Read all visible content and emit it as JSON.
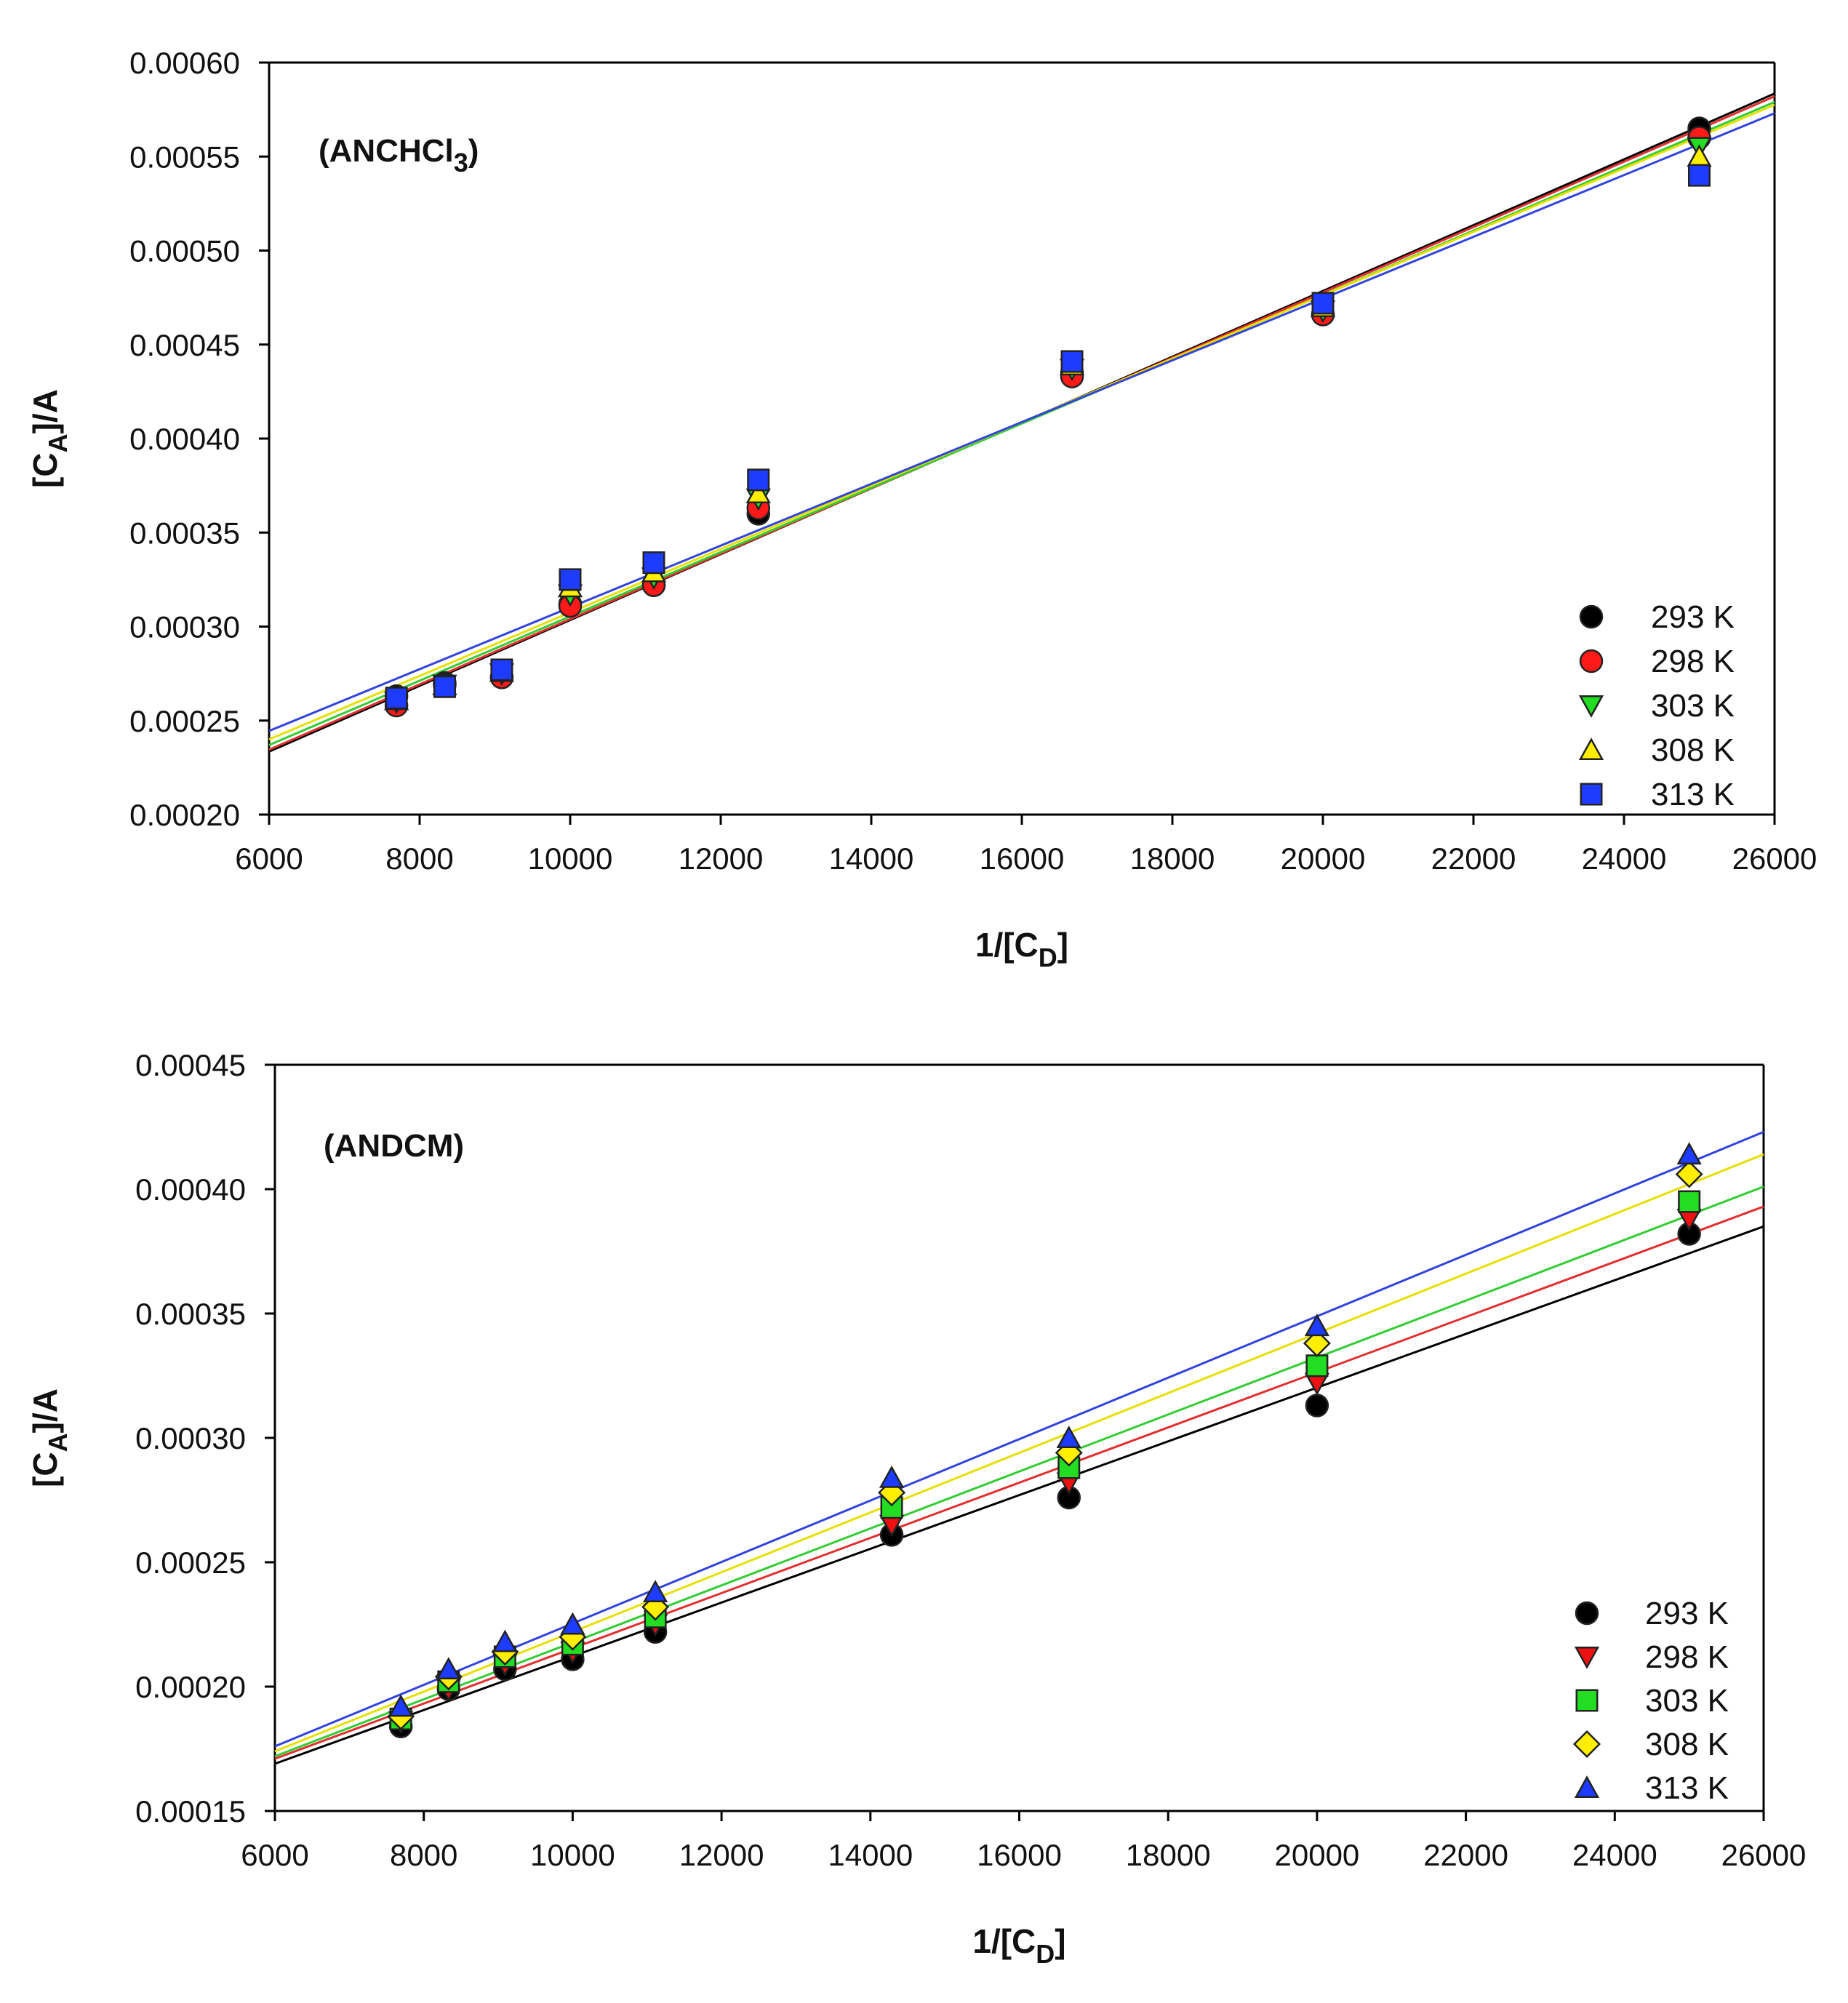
{
  "chart_data": [
    {
      "type": "scatter",
      "title": "(ANCHCl₃)",
      "title_main": "(ANCHCl",
      "title_sub": "3",
      "title_close": ")",
      "xlabel_main": "1/[C",
      "xlabel_sub": "D",
      "xlabel_close": "]",
      "ylabel_main": "[C",
      "ylabel_sub": "A",
      "ylabel_close": "]/A",
      "xlim": [
        6000,
        26000
      ],
      "ylim": [
        0.0002,
        0.0006
      ],
      "xticks": [
        6000,
        8000,
        10000,
        12000,
        14000,
        16000,
        18000,
        20000,
        22000,
        24000,
        26000
      ],
      "xtick_labels": [
        "6000",
        "8000",
        "10000",
        "12000",
        "14000",
        "16000",
        "18000",
        "20000",
        "22000",
        "24000",
        "26000"
      ],
      "yticks": [
        0.0002,
        0.00025,
        0.0003,
        0.00035,
        0.0004,
        0.00045,
        0.0005,
        0.00055,
        0.0006
      ],
      "ytick_labels": [
        "0.00020",
        "0.00025",
        "0.00030",
        "0.00035",
        "0.00040",
        "0.00045",
        "0.00050",
        "0.00055",
        "0.00060"
      ],
      "legend_position": "bottom-right",
      "series": [
        {
          "name": "293 K",
          "marker": "circle",
          "color": "#000000",
          "line_color": "#000000",
          "x": [
            7692,
            8333,
            9091,
            10000,
            11111,
            12500,
            16667,
            20000,
            25000
          ],
          "y": [
            0.000263,
            0.00027,
            0.000273,
            0.000312,
            0.000322,
            0.00036,
            0.000435,
            0.000466,
            0.000565
          ],
          "fit": {
            "x": [
              6000,
              26000
            ],
            "y": [
              0.0002335,
              0.0005835
            ]
          }
        },
        {
          "name": "298 K",
          "marker": "circle",
          "color": "#ff1a1a",
          "line_color": "#e03030",
          "x": [
            7692,
            8333,
            9091,
            10000,
            11111,
            12500,
            16667,
            20000,
            25000
          ],
          "y": [
            0.000258,
            0.000269,
            0.000273,
            0.000311,
            0.000322,
            0.000363,
            0.000433,
            0.000466,
            0.00056
          ],
          "fit": {
            "x": [
              6000,
              26000
            ],
            "y": [
              0.0002345,
              0.000582
            ]
          }
        },
        {
          "name": "303 K",
          "marker": "triangle-down",
          "color": "#22dd22",
          "line_color": "#33cc33",
          "x": [
            7692,
            8333,
            9091,
            10000,
            11111,
            12500,
            16667,
            20000,
            25000
          ],
          "y": [
            0.00026,
            0.000269,
            0.000275,
            0.000317,
            0.000326,
            0.000368,
            0.000437,
            0.000468,
            0.000555
          ],
          "fit": {
            "x": [
              6000,
              26000
            ],
            "y": [
              0.000237,
              0.000579
            ]
          }
        },
        {
          "name": "308 K",
          "marker": "triangle-up",
          "color": "#ffee00",
          "line_color": "#e6e000",
          "x": [
            7692,
            8333,
            9091,
            10000,
            11111,
            12500,
            16667,
            20000,
            25000
          ],
          "y": [
            0.000261,
            0.000269,
            0.000276,
            0.000321,
            0.000329,
            0.000371,
            0.000439,
            0.00047,
            0.00055
          ],
          "fit": {
            "x": [
              6000,
              26000
            ],
            "y": [
              0.00024,
              0.0005775
            ]
          }
        },
        {
          "name": "313 K",
          "marker": "square",
          "color": "#1e3cff",
          "line_color": "#3344dd",
          "x": [
            7692,
            8333,
            9091,
            10000,
            11111,
            12500,
            16667,
            20000,
            25000
          ],
          "y": [
            0.000262,
            0.000268,
            0.000277,
            0.000325,
            0.000334,
            0.000378,
            0.000441,
            0.000472,
            0.00054
          ],
          "fit": {
            "x": [
              6000,
              26000
            ],
            "y": [
              0.0002445,
              0.000573
            ]
          }
        }
      ]
    },
    {
      "type": "scatter",
      "title": "(ANDCM)",
      "title_main": "(ANDCM)",
      "title_sub": "",
      "title_close": "",
      "xlabel_main": "1/[C",
      "xlabel_sub": "D",
      "xlabel_close": "]",
      "ylabel_main": "[C",
      "ylabel_sub": "A",
      "ylabel_close": "]/A",
      "xlim": [
        6000,
        26000
      ],
      "ylim": [
        0.00015,
        0.00045
      ],
      "xticks": [
        6000,
        8000,
        10000,
        12000,
        14000,
        16000,
        18000,
        20000,
        22000,
        24000,
        26000
      ],
      "xtick_labels": [
        "6000",
        "8000",
        "10000",
        "12000",
        "14000",
        "16000",
        "18000",
        "20000",
        "22000",
        "24000",
        "26000"
      ],
      "yticks": [
        0.00015,
        0.0002,
        0.00025,
        0.0003,
        0.00035,
        0.0004,
        0.00045
      ],
      "ytick_labels": [
        "0.00015",
        "0.00020",
        "0.00025",
        "0.00030",
        "0.00035",
        "0.00040",
        "0.00045"
      ],
      "legend_position": "bottom-right",
      "series": [
        {
          "name": "293 K",
          "marker": "circle",
          "color": "#000000",
          "line_color": "#000000",
          "x": [
            7692,
            8333,
            9091,
            10000,
            11111,
            14286,
            16667,
            20000,
            25000
          ],
          "y": [
            0.000184,
            0.000199,
            0.000207,
            0.000211,
            0.000222,
            0.000261,
            0.000276,
            0.000313,
            0.000382
          ],
          "fit": {
            "x": [
              6000,
              26000
            ],
            "y": [
              0.000169,
              0.000385
            ]
          }
        },
        {
          "name": "298 K",
          "marker": "triangle-down",
          "color": "#ee1111",
          "line_color": "#e03030",
          "x": [
            7692,
            8333,
            9091,
            10000,
            11111,
            14286,
            16667,
            20000,
            25000
          ],
          "y": [
            0.000186,
            0.000199,
            0.000209,
            0.000214,
            0.000225,
            0.000265,
            0.000282,
            0.000322,
            0.000388
          ],
          "fit": {
            "x": [
              6000,
              26000
            ],
            "y": [
              0.000171,
              0.000393
            ]
          }
        },
        {
          "name": "303 K",
          "marker": "square",
          "color": "#22dd22",
          "line_color": "#33cc33",
          "x": [
            7692,
            8333,
            9091,
            10000,
            11111,
            14286,
            16667,
            20000,
            25000
          ],
          "y": [
            0.000187,
            0.000202,
            0.000212,
            0.000217,
            0.000228,
            0.000272,
            0.000288,
            0.000329,
            0.000395
          ],
          "fit": {
            "x": [
              6000,
              26000
            ],
            "y": [
              0.000172,
              0.000401
            ]
          }
        },
        {
          "name": "308 K",
          "marker": "diamond",
          "color": "#ffee00",
          "line_color": "#e6e000",
          "x": [
            7692,
            8333,
            9091,
            10000,
            11111,
            14286,
            16667,
            20000,
            25000
          ],
          "y": [
            0.000188,
            0.000204,
            0.000214,
            0.00022,
            0.000232,
            0.000278,
            0.000294,
            0.000338,
            0.000406
          ],
          "fit": {
            "x": [
              6000,
              26000
            ],
            "y": [
              0.000174,
              0.000414
            ]
          }
        },
        {
          "name": "313 K",
          "marker": "triangle-up",
          "color": "#1e3cff",
          "line_color": "#3344dd",
          "x": [
            7692,
            8333,
            9091,
            10000,
            11111,
            14286,
            16667,
            20000,
            25000
          ],
          "y": [
            0.000192,
            0.000207,
            0.000218,
            0.000225,
            0.000238,
            0.000284,
            0.0003,
            0.000345,
            0.000414
          ],
          "fit": {
            "x": [
              6000,
              26000
            ],
            "y": [
              0.000176,
              0.000423
            ]
          }
        }
      ]
    }
  ]
}
